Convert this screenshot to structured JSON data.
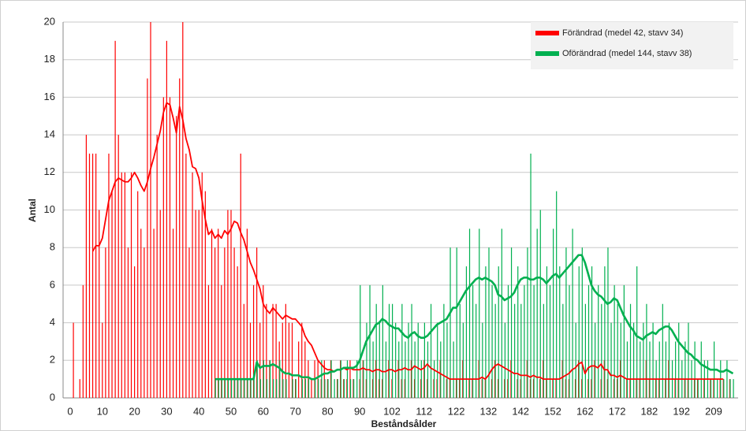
{
  "chart_data": {
    "type": "bar_line",
    "x_label": "Beståndsålder",
    "y_label": "Antal",
    "ylim": [
      0,
      20
    ],
    "yticks": [
      0,
      2,
      4,
      6,
      8,
      10,
      12,
      14,
      16,
      18,
      20
    ],
    "grid": true,
    "legend": "upper right",
    "categories": [
      "0",
      null,
      null,
      null,
      null,
      null,
      null,
      null,
      null,
      null,
      "10",
      null,
      null,
      null,
      null,
      null,
      null,
      null,
      null,
      null,
      "20",
      null,
      null,
      null,
      null,
      null,
      null,
      null,
      null,
      null,
      "30",
      null,
      null,
      null,
      null,
      null,
      null,
      null,
      null,
      null,
      "40",
      null,
      null,
      null,
      null,
      null,
      null,
      null,
      null,
      null,
      "50",
      null,
      null,
      null,
      null,
      null,
      null,
      null,
      null,
      null,
      "60",
      null,
      null,
      null,
      null,
      null,
      null,
      null,
      null,
      null,
      "70",
      null,
      null,
      null,
      null,
      null,
      null,
      null,
      null,
      null,
      "80",
      null,
      null,
      null,
      null,
      null,
      null,
      null,
      null,
      null,
      "90",
      null,
      null,
      null,
      null,
      null,
      null,
      null,
      null,
      null,
      "102",
      null,
      null,
      null,
      null,
      null,
      null,
      null,
      null,
      null,
      "112",
      null,
      null,
      null,
      null,
      null,
      null,
      null,
      null,
      null,
      "122",
      null,
      null,
      null,
      null,
      null,
      null,
      null,
      null,
      null,
      "132",
      null,
      null,
      null,
      null,
      null,
      null,
      null,
      null,
      null,
      "142",
      null,
      null,
      null,
      null,
      null,
      null,
      null,
      null,
      null,
      "152",
      null,
      null,
      null,
      null,
      null,
      null,
      null,
      null,
      null,
      "162",
      null,
      null,
      null,
      null,
      null,
      null,
      null,
      null,
      null,
      "172",
      null,
      null,
      null,
      null,
      null,
      null,
      null,
      null,
      null,
      "182",
      null,
      null,
      null,
      null,
      null,
      null,
      null,
      null,
      null,
      "192",
      null,
      null,
      null,
      null,
      null,
      null,
      null,
      null,
      null,
      "209",
      null,
      null,
      null,
      null,
      null,
      null
    ],
    "bar_series": [
      {
        "color": "#ff0000",
        "values": [
          0,
          4,
          0,
          1,
          6,
          14,
          13,
          13,
          13,
          10,
          4,
          8,
          13,
          11,
          19,
          14,
          12,
          12,
          8,
          12,
          7,
          11,
          9,
          8,
          17,
          20,
          9,
          14,
          10,
          16,
          19,
          16,
          9,
          15,
          17,
          20,
          13,
          8,
          12,
          10,
          10,
          12,
          11,
          6,
          9,
          8,
          9,
          6,
          8,
          10,
          10,
          8,
          7,
          13,
          5,
          9,
          4,
          6,
          8,
          4,
          6,
          5,
          2,
          5,
          5,
          3,
          4,
          5,
          4,
          4,
          1,
          3,
          4,
          3,
          2,
          1,
          2,
          2,
          1,
          2,
          1,
          2,
          0,
          1,
          2,
          1,
          1,
          2,
          1,
          0,
          1,
          2,
          1,
          0,
          1,
          2,
          1,
          1,
          0,
          2,
          1,
          0,
          2,
          1,
          1,
          0,
          2,
          1,
          0,
          1,
          2,
          1,
          0,
          1,
          1,
          2,
          0,
          1,
          1,
          0,
          1,
          1,
          2,
          0,
          1,
          1,
          0,
          2,
          1,
          1,
          0,
          1,
          2,
          1,
          0,
          1,
          1,
          2,
          0,
          1,
          1,
          0,
          2,
          1,
          1,
          0,
          1,
          2,
          1,
          0,
          1,
          1,
          0,
          2,
          1,
          1,
          0,
          1,
          2,
          1,
          0,
          1,
          1,
          2,
          0,
          1,
          2,
          1,
          0,
          1,
          1,
          2,
          0,
          1,
          1,
          0,
          1,
          1,
          0,
          2,
          1,
          0,
          1,
          1,
          0,
          1,
          2,
          0,
          1,
          1,
          0,
          1,
          1,
          0,
          1,
          1,
          0,
          1,
          0,
          1,
          1,
          0,
          1,
          1,
          0,
          1,
          0
        ]
      },
      {
        "color": "#00b050",
        "values": [
          0,
          0,
          0,
          0,
          0,
          0,
          0,
          0,
          0,
          0,
          0,
          0,
          0,
          0,
          0,
          0,
          0,
          0,
          0,
          0,
          0,
          0,
          0,
          0,
          0,
          0,
          0,
          0,
          0,
          0,
          0,
          0,
          0,
          0,
          0,
          0,
          0,
          0,
          0,
          0,
          0,
          0,
          0,
          0,
          0,
          1,
          1,
          1,
          1,
          1,
          1,
          1,
          1,
          1,
          1,
          1,
          1,
          1,
          2,
          1,
          2,
          1,
          2,
          1,
          1,
          2,
          1,
          1,
          0,
          1,
          1,
          0,
          1,
          1,
          1,
          0,
          1,
          1,
          2,
          1,
          1,
          2,
          1,
          1,
          2,
          1,
          2,
          1,
          1,
          2,
          6,
          2,
          4,
          6,
          3,
          5,
          4,
          6,
          3,
          5,
          5,
          4,
          3,
          5,
          3,
          4,
          5,
          3,
          4,
          2,
          4,
          3,
          5,
          2,
          4,
          3,
          5,
          4,
          8,
          3,
          8,
          5,
          4,
          7,
          9,
          6,
          5,
          9,
          4,
          7,
          8,
          6,
          5,
          7,
          9,
          4,
          6,
          8,
          5,
          7,
          5,
          6,
          8,
          13,
          6,
          9,
          10,
          5,
          7,
          6,
          9,
          11,
          7,
          5,
          8,
          6,
          9,
          4,
          7,
          8,
          5,
          6,
          7,
          4,
          6,
          5,
          7,
          8,
          4,
          6,
          5,
          4,
          6,
          3,
          5,
          4,
          7,
          3,
          4,
          5,
          3,
          4,
          2,
          3,
          5,
          3,
          4,
          2,
          3,
          4,
          2,
          3,
          4,
          2,
          3,
          1,
          3,
          2,
          2,
          1,
          3,
          1,
          2,
          1,
          2,
          1,
          1
        ]
      }
    ],
    "series": [
      {
        "name": "Förändrad (medel 42, stavv 34)",
        "color": "#ff0000",
        "values": [
          null,
          null,
          null,
          null,
          null,
          null,
          null,
          7.8,
          8.1,
          8.1,
          8.5,
          9.5,
          10.5,
          11,
          11.5,
          11.7,
          11.6,
          11.5,
          11.5,
          11.7,
          12,
          11.7,
          11.3,
          11,
          11.5,
          12.2,
          12.8,
          13.5,
          14.2,
          15.2,
          15.7,
          15.6,
          14.9,
          14.1,
          15.5,
          14.8,
          13.8,
          13.2,
          12.3,
          12.2,
          11.7,
          10.5,
          9.5,
          8.7,
          8.9,
          8.5,
          8.7,
          8.5,
          8.9,
          8.7,
          9,
          9.4,
          9.3,
          8.8,
          8.4,
          7.8,
          7.2,
          6.8,
          6.3,
          5.8,
          5,
          4.7,
          4.5,
          4.8,
          4.6,
          4.4,
          4.2,
          4.4,
          4.3,
          4.2,
          4.2,
          4,
          3.8,
          3.3,
          3,
          2.8,
          2.4,
          2,
          1.8,
          1.6,
          1.5,
          1.5,
          1.4,
          1.5,
          1.5,
          1.6,
          1.5,
          1.6,
          1.5,
          1.5,
          1.5,
          1.6,
          1.5,
          1.5,
          1.4,
          1.5,
          1.5,
          1.4,
          1.4,
          1.5,
          1.5,
          1.4,
          1.5,
          1.5,
          1.6,
          1.5,
          1.5,
          1.7,
          1.6,
          1.5,
          1.6,
          1.8,
          1.6,
          1.5,
          1.4,
          1.3,
          1.2,
          1.1,
          1,
          1,
          1,
          1,
          1,
          1,
          1,
          1,
          1,
          1,
          1.1,
          1,
          1.2,
          1.5,
          1.7,
          1.8,
          1.7,
          1.6,
          1.5,
          1.4,
          1.3,
          1.3,
          1.2,
          1.2,
          1.2,
          1.1,
          1.2,
          1.1,
          1.1,
          1,
          1,
          1,
          1,
          1,
          1,
          1.1,
          1.2,
          1.3,
          1.5,
          1.6,
          1.8,
          1.9,
          1.3,
          1.6,
          1.7,
          1.7,
          1.6,
          1.8,
          1.5,
          1.5,
          1.2,
          1.2,
          1.1,
          1.2,
          1.1,
          1,
          1,
          1,
          1,
          1,
          1,
          1,
          1,
          1,
          1,
          1,
          1,
          1,
          1,
          1,
          1,
          1,
          1,
          1,
          1,
          1,
          1,
          1,
          1,
          1,
          1,
          1,
          1,
          1,
          1,
          1,
          null,
          null,
          null
        ]
      },
      {
        "name": "Oförändrad (medel 144, stavv 38)",
        "color": "#00b050",
        "values": [
          null,
          null,
          null,
          null,
          null,
          null,
          null,
          null,
          null,
          null,
          null,
          null,
          null,
          null,
          null,
          null,
          null,
          null,
          null,
          null,
          null,
          null,
          null,
          null,
          null,
          null,
          null,
          null,
          null,
          null,
          null,
          null,
          null,
          null,
          null,
          null,
          null,
          null,
          null,
          null,
          null,
          null,
          null,
          null,
          null,
          1,
          1,
          1,
          1,
          1,
          1,
          1,
          1,
          1,
          1,
          1,
          1,
          1,
          1.9,
          1.6,
          1.7,
          1.7,
          1.7,
          1.8,
          1.7,
          1.6,
          1.4,
          1.3,
          1.3,
          1.2,
          1.2,
          1.2,
          1.1,
          1.1,
          1.1,
          1,
          1,
          1.1,
          1.2,
          1.3,
          1.3,
          1.4,
          1.4,
          1.5,
          1.5,
          1.6,
          1.6,
          1.6,
          1.6,
          1.7,
          2,
          2.5,
          3,
          3.3,
          3.6,
          3.9,
          4,
          4.2,
          4.1,
          3.9,
          3.8,
          3.7,
          3.7,
          3.5,
          3.3,
          3.2,
          3.4,
          3.5,
          3.3,
          3.2,
          3.2,
          3.3,
          3.5,
          3.7,
          3.9,
          4,
          4.1,
          4.2,
          4.5,
          4.8,
          4.8,
          5.1,
          5.4,
          5.7,
          5.9,
          6.1,
          6.3,
          6.4,
          6.3,
          6.4,
          6.3,
          6.2,
          6,
          5.5,
          5.4,
          5.2,
          5.3,
          5.4,
          5.6,
          6,
          6.3,
          6.4,
          6.4,
          6.3,
          6.3,
          6.4,
          6.4,
          6.3,
          6.1,
          6.3,
          6.5,
          6.6,
          6.4,
          6.6,
          6.8,
          7,
          7.2,
          7.4,
          7.6,
          7.6,
          7.2,
          6.6,
          6,
          5.7,
          5.5,
          5.4,
          5.2,
          5,
          5.1,
          5.3,
          5.2,
          4.8,
          4.4,
          4.1,
          3.8,
          3.6,
          3.3,
          3.2,
          3.1,
          3.3,
          3.4,
          3.5,
          3.4,
          3.6,
          3.7,
          3.8,
          3.8,
          3.6,
          3.3,
          3,
          2.8,
          2.6,
          2.4,
          2.3,
          2.1,
          2,
          1.8,
          1.7,
          1.6,
          1.5,
          1.5,
          1.5,
          1.4,
          1.4,
          1.5,
          1.4,
          1.3
        ]
      }
    ]
  }
}
